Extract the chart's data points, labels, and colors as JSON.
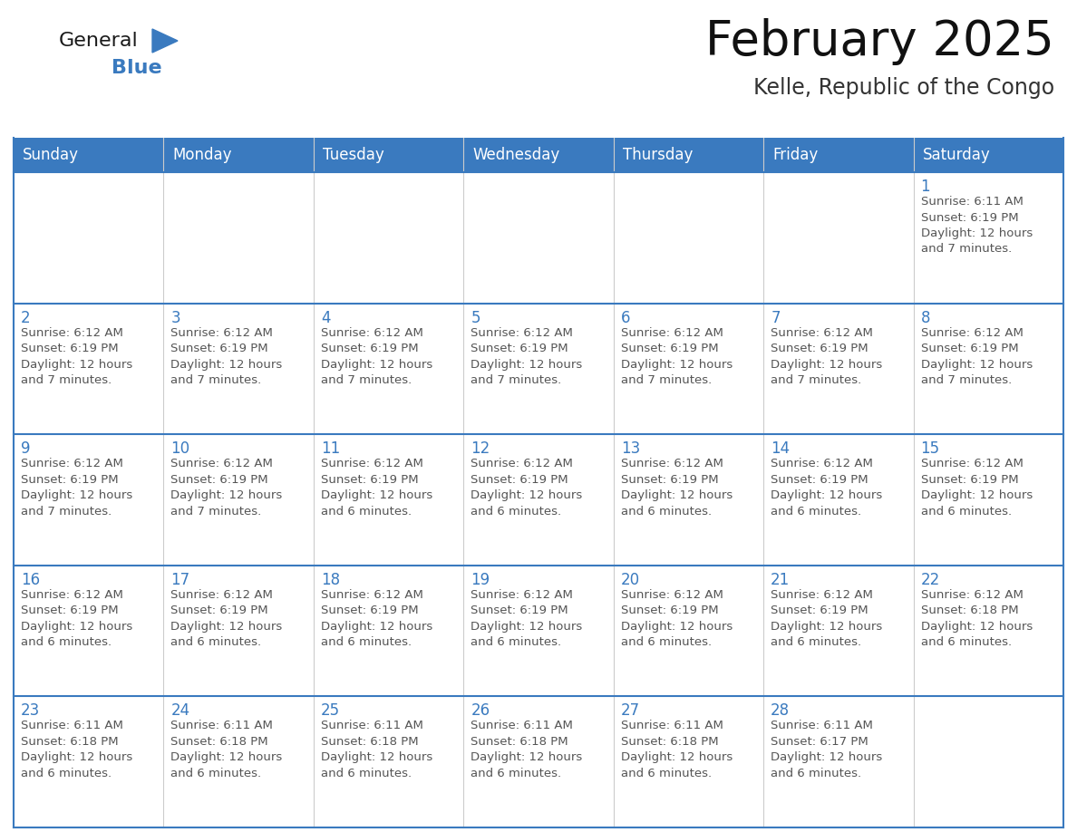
{
  "title": "February 2025",
  "subtitle": "Kelle, Republic of the Congo",
  "header_bg": "#3a7abf",
  "header_text_color": "#ffffff",
  "cell_border_color": "#3a7abf",
  "day_number_color": "#3a7abf",
  "info_text_color": "#555555",
  "background_color": "#ffffff",
  "alt_row_color": "#f0f4f8",
  "days_of_week": [
    "Sunday",
    "Monday",
    "Tuesday",
    "Wednesday",
    "Thursday",
    "Friday",
    "Saturday"
  ],
  "weeks": [
    [
      {
        "day": null,
        "info": null
      },
      {
        "day": null,
        "info": null
      },
      {
        "day": null,
        "info": null
      },
      {
        "day": null,
        "info": null
      },
      {
        "day": null,
        "info": null
      },
      {
        "day": null,
        "info": null
      },
      {
        "day": 1,
        "info": "Sunrise: 6:11 AM\nSunset: 6:19 PM\nDaylight: 12 hours\nand 7 minutes."
      }
    ],
    [
      {
        "day": 2,
        "info": "Sunrise: 6:12 AM\nSunset: 6:19 PM\nDaylight: 12 hours\nand 7 minutes."
      },
      {
        "day": 3,
        "info": "Sunrise: 6:12 AM\nSunset: 6:19 PM\nDaylight: 12 hours\nand 7 minutes."
      },
      {
        "day": 4,
        "info": "Sunrise: 6:12 AM\nSunset: 6:19 PM\nDaylight: 12 hours\nand 7 minutes."
      },
      {
        "day": 5,
        "info": "Sunrise: 6:12 AM\nSunset: 6:19 PM\nDaylight: 12 hours\nand 7 minutes."
      },
      {
        "day": 6,
        "info": "Sunrise: 6:12 AM\nSunset: 6:19 PM\nDaylight: 12 hours\nand 7 minutes."
      },
      {
        "day": 7,
        "info": "Sunrise: 6:12 AM\nSunset: 6:19 PM\nDaylight: 12 hours\nand 7 minutes."
      },
      {
        "day": 8,
        "info": "Sunrise: 6:12 AM\nSunset: 6:19 PM\nDaylight: 12 hours\nand 7 minutes."
      }
    ],
    [
      {
        "day": 9,
        "info": "Sunrise: 6:12 AM\nSunset: 6:19 PM\nDaylight: 12 hours\nand 7 minutes."
      },
      {
        "day": 10,
        "info": "Sunrise: 6:12 AM\nSunset: 6:19 PM\nDaylight: 12 hours\nand 7 minutes."
      },
      {
        "day": 11,
        "info": "Sunrise: 6:12 AM\nSunset: 6:19 PM\nDaylight: 12 hours\nand 6 minutes."
      },
      {
        "day": 12,
        "info": "Sunrise: 6:12 AM\nSunset: 6:19 PM\nDaylight: 12 hours\nand 6 minutes."
      },
      {
        "day": 13,
        "info": "Sunrise: 6:12 AM\nSunset: 6:19 PM\nDaylight: 12 hours\nand 6 minutes."
      },
      {
        "day": 14,
        "info": "Sunrise: 6:12 AM\nSunset: 6:19 PM\nDaylight: 12 hours\nand 6 minutes."
      },
      {
        "day": 15,
        "info": "Sunrise: 6:12 AM\nSunset: 6:19 PM\nDaylight: 12 hours\nand 6 minutes."
      }
    ],
    [
      {
        "day": 16,
        "info": "Sunrise: 6:12 AM\nSunset: 6:19 PM\nDaylight: 12 hours\nand 6 minutes."
      },
      {
        "day": 17,
        "info": "Sunrise: 6:12 AM\nSunset: 6:19 PM\nDaylight: 12 hours\nand 6 minutes."
      },
      {
        "day": 18,
        "info": "Sunrise: 6:12 AM\nSunset: 6:19 PM\nDaylight: 12 hours\nand 6 minutes."
      },
      {
        "day": 19,
        "info": "Sunrise: 6:12 AM\nSunset: 6:19 PM\nDaylight: 12 hours\nand 6 minutes."
      },
      {
        "day": 20,
        "info": "Sunrise: 6:12 AM\nSunset: 6:19 PM\nDaylight: 12 hours\nand 6 minutes."
      },
      {
        "day": 21,
        "info": "Sunrise: 6:12 AM\nSunset: 6:19 PM\nDaylight: 12 hours\nand 6 minutes."
      },
      {
        "day": 22,
        "info": "Sunrise: 6:12 AM\nSunset: 6:18 PM\nDaylight: 12 hours\nand 6 minutes."
      }
    ],
    [
      {
        "day": 23,
        "info": "Sunrise: 6:11 AM\nSunset: 6:18 PM\nDaylight: 12 hours\nand 6 minutes."
      },
      {
        "day": 24,
        "info": "Sunrise: 6:11 AM\nSunset: 6:18 PM\nDaylight: 12 hours\nand 6 minutes."
      },
      {
        "day": 25,
        "info": "Sunrise: 6:11 AM\nSunset: 6:18 PM\nDaylight: 12 hours\nand 6 minutes."
      },
      {
        "day": 26,
        "info": "Sunrise: 6:11 AM\nSunset: 6:18 PM\nDaylight: 12 hours\nand 6 minutes."
      },
      {
        "day": 27,
        "info": "Sunrise: 6:11 AM\nSunset: 6:18 PM\nDaylight: 12 hours\nand 6 minutes."
      },
      {
        "day": 28,
        "info": "Sunrise: 6:11 AM\nSunset: 6:17 PM\nDaylight: 12 hours\nand 6 minutes."
      },
      {
        "day": null,
        "info": null
      }
    ]
  ],
  "logo_general_color": "#1a1a1a",
  "logo_blue_color": "#3a7abf",
  "title_fontsize": 38,
  "subtitle_fontsize": 17,
  "header_fontsize": 12,
  "day_number_fontsize": 12,
  "cell_text_fontsize": 9.5
}
